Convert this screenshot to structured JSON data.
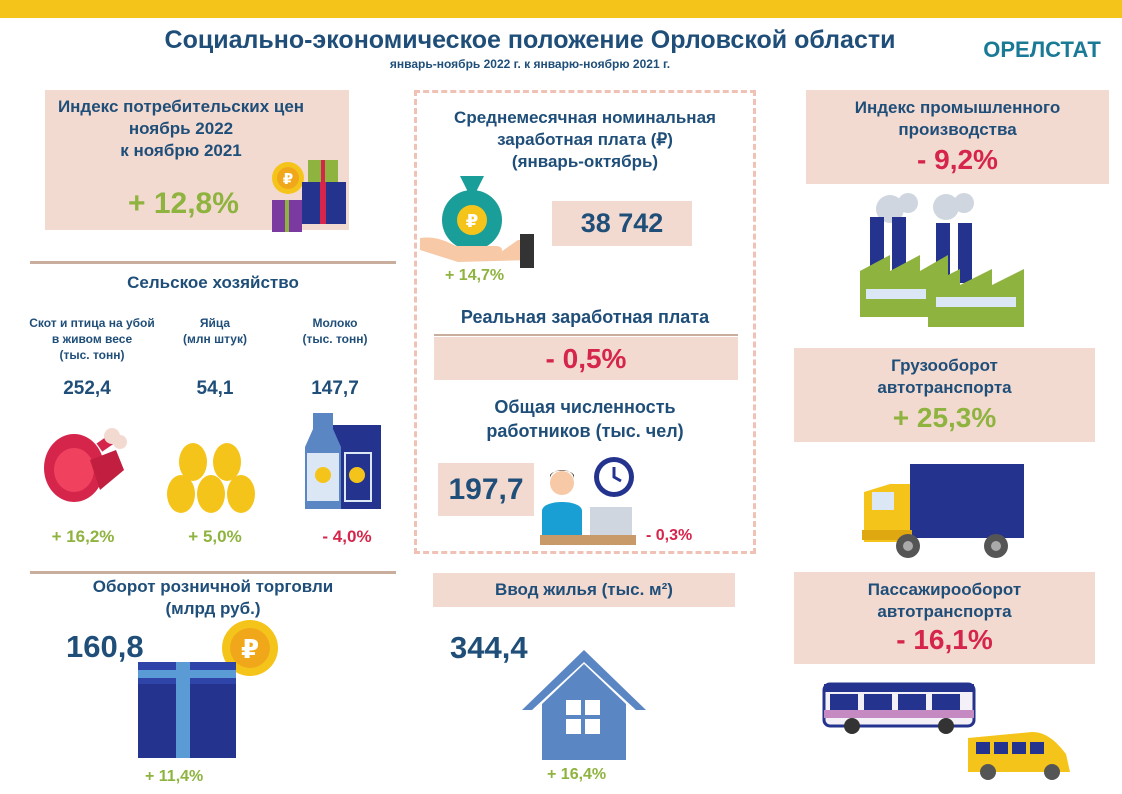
{
  "header": {
    "title": "Социально-экономическое положение Орловской области",
    "subtitle": "январь-ноябрь 2022 г. к январю-ноябрю 2021 г.",
    "brand": "ОРЕЛСТАТ"
  },
  "cpi": {
    "title_line1": "Индекс потребительских цен",
    "title_line2": "ноябрь 2022",
    "title_line3": "к ноябрю 2021",
    "value": "+ 12,8%"
  },
  "agriculture": {
    "title": "Сельское хозяйство",
    "items": [
      {
        "label_line1": "Скот и птица на убой",
        "label_line2": "в живом весе",
        "label_line3": "(тыс. тонн)",
        "value": "252,4",
        "change": "+ 16,2%"
      },
      {
        "label_line1": "Яйца",
        "label_line2": "(млн штук)",
        "label_line3": "",
        "value": "54,1",
        "change": "+ 5,0%"
      },
      {
        "label_line1": "Молоко",
        "label_line2": "(тыс. тонн)",
        "label_line3": "",
        "value": "147,7",
        "change": "- 4,0%"
      }
    ]
  },
  "retail": {
    "title_line1": "Оборот розничной торговли",
    "title_line2": "(млрд руб.)",
    "value": "160,8",
    "change": "+ 11,4%"
  },
  "wage": {
    "title_line1": "Среднемесячная номинальная",
    "title_line2": "заработная плата (₽)",
    "title_line3": "(январь-октябрь)",
    "value": "38 742",
    "change": "+ 14,7%",
    "real_title": "Реальная заработная плата",
    "real_value": "- 0,5%"
  },
  "workers": {
    "title_line1": "Общая численность",
    "title_line2": "работников (тыс. чел)",
    "value": "197,7",
    "change": "- 0,3%"
  },
  "housing": {
    "title": "Ввод жилья (тыс. м²)",
    "value": "344,4",
    "change": "+ 16,4%"
  },
  "industry": {
    "title_line1": "Индекс промышленного",
    "title_line2": "производства",
    "value": "- 9,2%"
  },
  "freight": {
    "title_line1": "Грузооборот",
    "title_line2": "автотранспорта",
    "value": "+ 25,3%"
  },
  "passenger": {
    "title_line1": "Пассажирооборот",
    "title_line2": "автотранспорта",
    "value": "- 16,1%"
  },
  "icons": {
    "cpi": "gift-boxes-coin-icon",
    "meat": "meat-leg-icon",
    "eggs": "eggs-icon",
    "milk": "milk-carton-icon",
    "retail": "gift-box-coin-icon",
    "wage": "money-bag-hand-icon",
    "workers": "office-worker-clock-icon",
    "housing": "house-icon",
    "industry": "factory-icon",
    "freight": "truck-icon",
    "passenger": "bus-minibus-icon"
  },
  "colors": {
    "accent_blue": "#1f4e79",
    "positive_green": "#8fb33f",
    "negative_red": "#d6254b",
    "panel_pink": "#f3dad1",
    "top_bar_yellow": "#f5c41a"
  }
}
